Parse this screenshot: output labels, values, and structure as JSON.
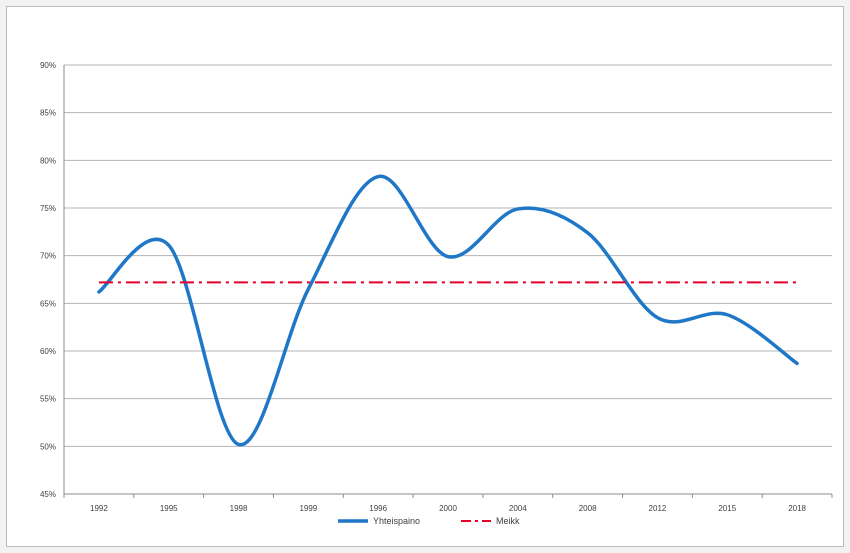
{
  "chart_data": {
    "type": "line",
    "x": [
      "1992",
      "1995",
      "1998",
      "1999",
      "1996",
      "2000",
      "2004",
      "2008",
      "2012",
      "2015",
      "2018"
    ],
    "series": [
      {
        "name": "Yhteispaino",
        "values": [
          66.2,
          71.1,
          50.2,
          66.5,
          78.3,
          69.9,
          74.9,
          72.4,
          63.5,
          63.8,
          58.7
        ],
        "color": "#1f77c7",
        "style": "solid"
      },
      {
        "name": "Meikk",
        "values": [
          67.2,
          67.2,
          67.2,
          67.2,
          67.2,
          67.2,
          67.2,
          67.2,
          67.2,
          67.2,
          67.2
        ],
        "color": "#e4002b",
        "style": "dash-dot"
      }
    ],
    "yticks": [
      "45%",
      "50%",
      "55%",
      "60%",
      "65%",
      "70%",
      "75%",
      "80%",
      "85%",
      "90%"
    ],
    "ylim": [
      45,
      90
    ],
    "grid": true,
    "legend_position": "bottom"
  }
}
